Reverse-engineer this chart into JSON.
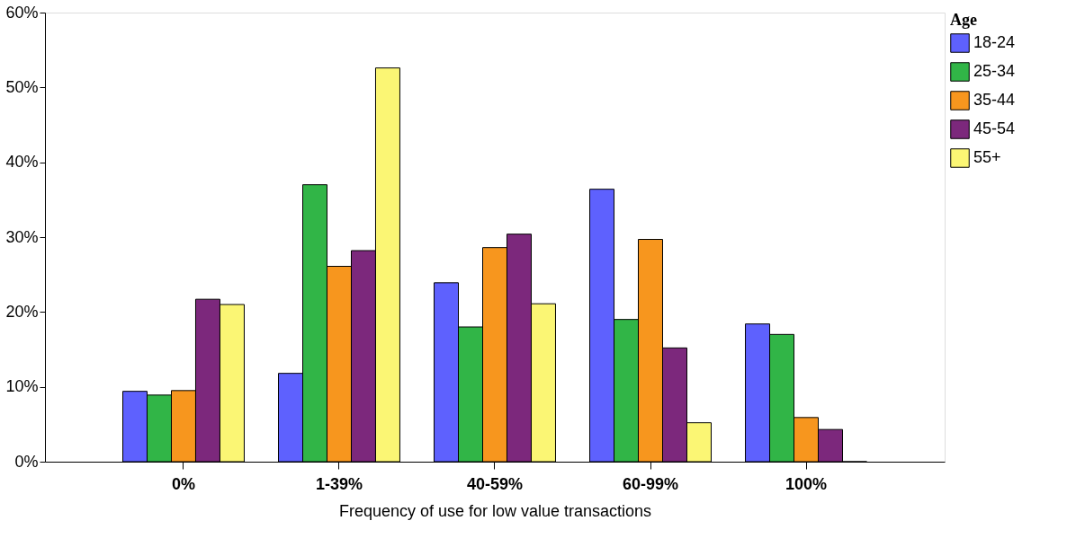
{
  "chart_data": {
    "type": "bar",
    "xlabel": "Frequency of use for low value transactions",
    "legend_title": "Age",
    "categories": [
      "0%",
      "1-39%",
      "40-59%",
      "60-99%",
      "100%"
    ],
    "series": [
      {
        "name": "18-24",
        "color": "#5e61fe",
        "values": [
          9.4,
          11.8,
          23.9,
          36.4,
          18.4
        ]
      },
      {
        "name": "25-34",
        "color": "#31b547",
        "values": [
          8.9,
          37.0,
          18.0,
          19.0,
          17.0
        ]
      },
      {
        "name": "35-44",
        "color": "#f7961e",
        "values": [
          9.5,
          26.1,
          28.6,
          29.7,
          5.9
        ]
      },
      {
        "name": "45-54",
        "color": "#7c287c",
        "values": [
          21.7,
          28.2,
          30.4,
          15.2,
          4.3
        ]
      },
      {
        "name": "55+",
        "color": "#fbf674",
        "values": [
          21.0,
          52.6,
          21.1,
          5.2,
          0
        ]
      }
    ],
    "ylim": [
      0,
      60
    ],
    "yticks": [
      {
        "value": 0,
        "label": "0%"
      },
      {
        "value": 10,
        "label": "10%"
      },
      {
        "value": 20,
        "label": "20%"
      },
      {
        "value": 30,
        "label": "30%"
      },
      {
        "value": 40,
        "label": "40%"
      },
      {
        "value": 50,
        "label": "50%"
      },
      {
        "value": 60,
        "label": "60%"
      }
    ],
    "grid": false,
    "legend": "top right"
  }
}
